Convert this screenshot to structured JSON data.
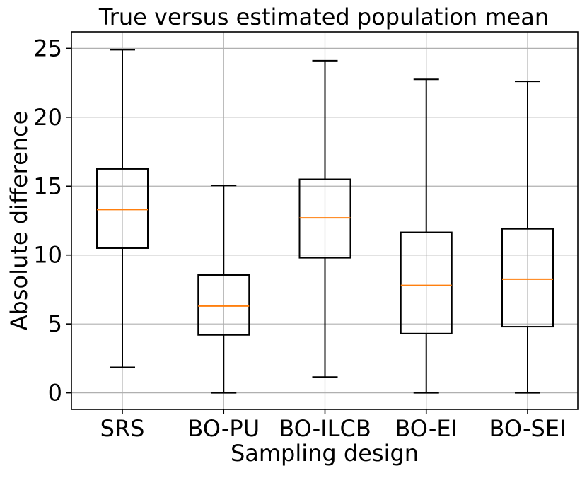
{
  "chart_data": {
    "type": "boxplot",
    "title": "True versus estimated population mean",
    "xlabel": "Sampling design",
    "ylabel": "Absolute difference",
    "ylim": [
      -1.2,
      26.2
    ],
    "yticks": [
      0,
      5,
      10,
      15,
      20,
      25
    ],
    "ytick_labels": [
      "0",
      "5",
      "10",
      "15",
      "20",
      "25"
    ],
    "grid": true,
    "median_color": "#ff7f0e",
    "box_color": "#000000",
    "grid_color": "#b0b0b0",
    "categories": [
      "SRS",
      "BO-PU",
      "BO-ILCB",
      "BO-EI",
      "BO-SEI"
    ],
    "boxes": [
      {
        "label": "SRS",
        "whisker_low": 1.85,
        "q1": 10.5,
        "median": 13.3,
        "q3": 16.25,
        "whisker_high": 24.9
      },
      {
        "label": "BO-PU",
        "whisker_low": 0.0,
        "q1": 4.2,
        "median": 6.3,
        "q3": 8.55,
        "whisker_high": 15.05
      },
      {
        "label": "BO-ILCB",
        "whisker_low": 1.15,
        "q1": 9.8,
        "median": 12.7,
        "q3": 15.5,
        "whisker_high": 24.1
      },
      {
        "label": "BO-EI",
        "whisker_low": 0.0,
        "q1": 4.3,
        "median": 7.8,
        "q3": 11.65,
        "whisker_high": 22.75
      },
      {
        "label": "BO-SEI",
        "whisker_low": 0.0,
        "q1": 4.8,
        "median": 8.25,
        "q3": 11.9,
        "whisker_high": 22.6
      }
    ]
  }
}
